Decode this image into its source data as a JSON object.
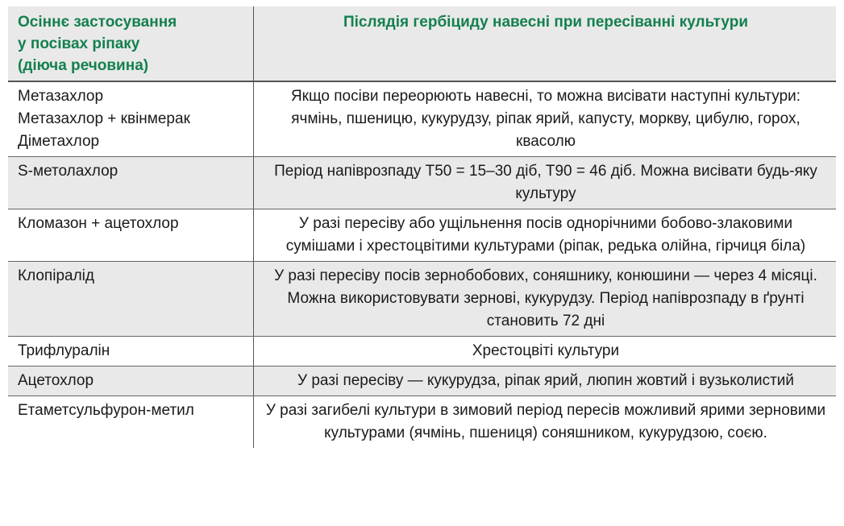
{
  "headers": [
    "Осіннє застосування\nу посівах ріпаку\n(діюча речовина)",
    "Післядія гербіциду навесні при пересіванні культури"
  ],
  "rows": [
    [
      "Метазахлор\nМетазахлор + квінмерак\nДіметахлор",
      "Якщо посіви переорюють навесні, то можна висівати наступні культури: ячмінь, пшеницю, кукурудзу, ріпак ярий, капусту, моркву, цибулю, горох, квасолю"
    ],
    [
      "S-метолахлор",
      "Період напіврозпаду Т50 = 15–30 діб, Т90 = 46 діб. Можна висівати будь-яку культуру"
    ],
    [
      "Кломазон + ацетохлор",
      "У разі пересіву або ущільнення посів однорічними бобово-злаковими сумішами і хрестоцвітими культурами (ріпак, редька олійна, гірчиця біла)"
    ],
    [
      "Клопіралід",
      "У разі пересіву посів зернобобових, соняшнику, конюшини — через 4 місяці. Можна використовувати зернові, кукурудзу. Період напіврозпаду в ґрунті становить 72 дні"
    ],
    [
      "Трифлуралін",
      "Хрестоцвіті культури"
    ],
    [
      "Ацетохлор",
      "У разі пересіву — кукурудза, ріпак ярий, люпин жовтий і вузьколистий"
    ],
    [
      "Етаметсульфурон-метил",
      "У разі загибелі культури в зимовий період пересів можливий ярими зерновими культурами (ячмінь, пшениця) соняшником, кукурудзою, соєю."
    ]
  ],
  "colors": {
    "header_text": "#14804f",
    "stripe": "#e9e9e9"
  }
}
